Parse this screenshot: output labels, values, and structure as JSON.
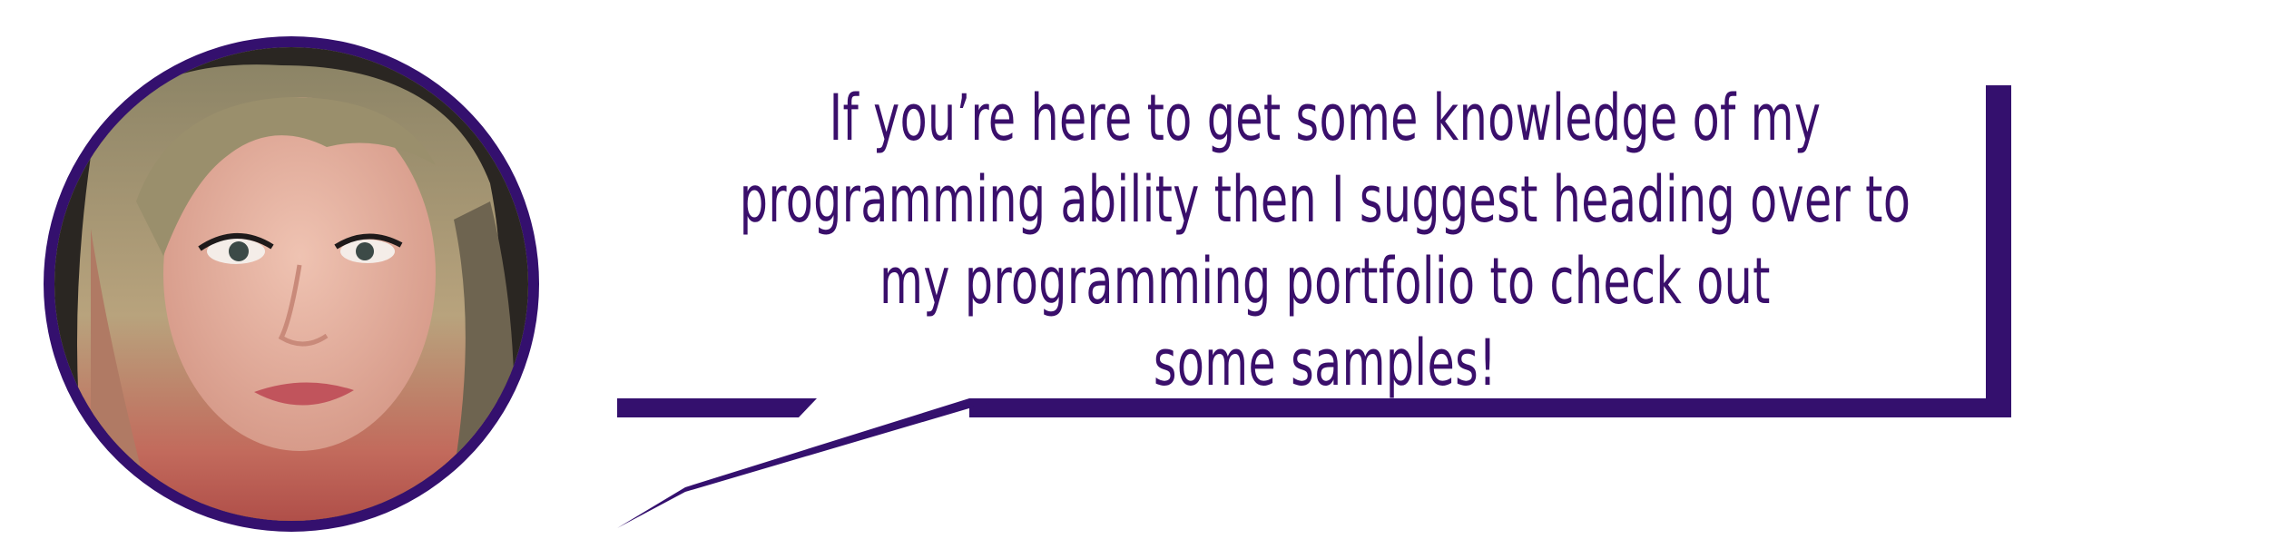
{
  "avatar": {
    "icon": "person-portrait",
    "border_color": "#34106e"
  },
  "speech_bubble": {
    "accent_color": "#34106e",
    "text_color": "#3a0f6b",
    "lines": [
      "If you’re here to get some knowledge of my",
      "programming ability then I suggest heading over to",
      "my programming portfolio to check out",
      "some samples!"
    ]
  }
}
